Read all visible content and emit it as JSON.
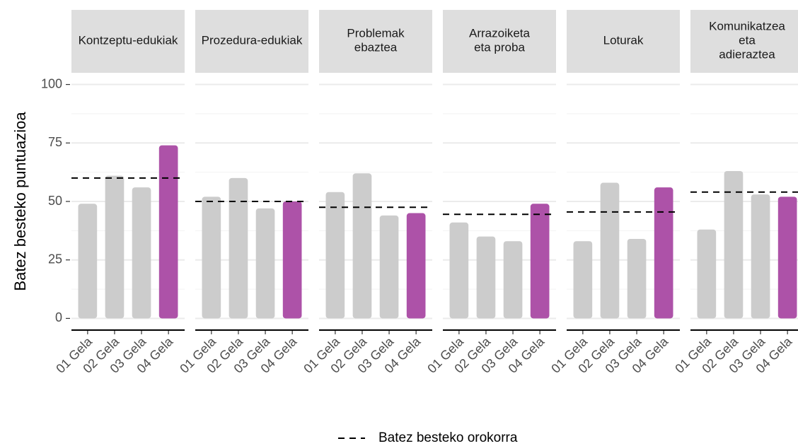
{
  "chart_data": {
    "type": "bar",
    "ylabel": "Batez besteko puntuazioa",
    "legend_label": "Batez besteko orokorra",
    "ylim": [
      -5,
      105
    ],
    "yticks": [
      0,
      25,
      50,
      75,
      100
    ],
    "minor_yticks": [
      12.5,
      37.5,
      62.5,
      87.5
    ],
    "grid": true,
    "facets": [
      {
        "title": [
          "Kontzeptu-edukiak"
        ],
        "categories": [
          "01 Gela",
          "02 Gela",
          "03 Gela",
          "04 Gela"
        ],
        "values": [
          49,
          61,
          56,
          74
        ],
        "colors": [
          "#cccccc",
          "#cccccc",
          "#cccccc",
          "#ad52a8"
        ],
        "mean": 60
      },
      {
        "title": [
          "Prozedura-edukiak"
        ],
        "categories": [
          "01 Gela",
          "02 Gela",
          "03 Gela",
          "04 Gela"
        ],
        "values": [
          52,
          60,
          47,
          50
        ],
        "colors": [
          "#cccccc",
          "#cccccc",
          "#cccccc",
          "#ad52a8"
        ],
        "mean": 50
      },
      {
        "title": [
          "Problemak",
          "ebaztea"
        ],
        "categories": [
          "01 Gela",
          "02 Gela",
          "03 Gela",
          "04 Gela"
        ],
        "values": [
          54,
          62,
          44,
          45
        ],
        "colors": [
          "#cccccc",
          "#cccccc",
          "#cccccc",
          "#ad52a8"
        ],
        "mean": 47.5
      },
      {
        "title": [
          "Arrazoiketa",
          "eta proba"
        ],
        "categories": [
          "01 Gela",
          "02 Gela",
          "03 Gela",
          "04 Gela"
        ],
        "values": [
          41,
          35,
          33,
          49
        ],
        "colors": [
          "#cccccc",
          "#cccccc",
          "#cccccc",
          "#ad52a8"
        ],
        "mean": 44.5
      },
      {
        "title": [
          "Loturak"
        ],
        "categories": [
          "01 Gela",
          "02 Gela",
          "03 Gela",
          "04 Gela"
        ],
        "values": [
          33,
          58,
          34,
          56
        ],
        "colors": [
          "#cccccc",
          "#cccccc",
          "#cccccc",
          "#ad52a8"
        ],
        "mean": 45.5
      },
      {
        "title": [
          "Komunikatzea",
          "eta",
          "adieraztea"
        ],
        "categories": [
          "01 Gela",
          "02 Gela",
          "03 Gela",
          "04 Gela"
        ],
        "values": [
          38,
          63,
          53,
          52
        ],
        "colors": [
          "#cccccc",
          "#cccccc",
          "#cccccc",
          "#ad52a8"
        ],
        "mean": 54
      }
    ]
  }
}
